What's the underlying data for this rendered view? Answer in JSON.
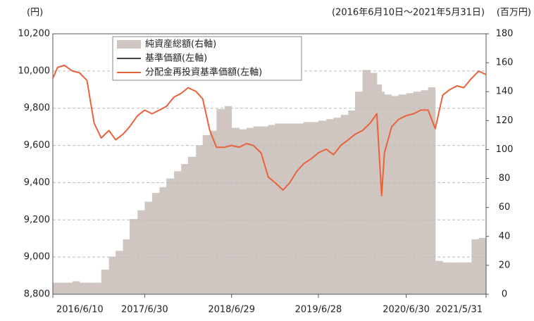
{
  "chart_data": {
    "type": "bar-line",
    "y_label": "(円)",
    "subtitle": "(2016年6月10日～2021年5月31日)",
    "y2_label": "(百万円)",
    "x": [
      "2016/6/10",
      "2016/6/30",
      "2016/7/29",
      "2016/8/31",
      "2016/9/30",
      "2016/10/31",
      "2016/11/30",
      "2016/12/30",
      "2017/1/31",
      "2017/2/28",
      "2017/3/31",
      "2017/4/28",
      "2017/5/31",
      "2017/6/30",
      "2017/7/31",
      "2017/8/31",
      "2017/9/29",
      "2017/10/31",
      "2017/11/30",
      "2017/12/29",
      "2018/1/31",
      "2018/2/28",
      "2018/3/30",
      "2018/4/27",
      "2018/5/31",
      "2018/6/29",
      "2018/7/31",
      "2018/8/31",
      "2018/9/28",
      "2018/10/31",
      "2018/11/30",
      "2018/12/28",
      "2019/1/31",
      "2019/2/28",
      "2019/3/29",
      "2019/4/26",
      "2019/5/31",
      "2019/6/28",
      "2019/7/31",
      "2019/8/30",
      "2019/9/30",
      "2019/10/31",
      "2019/11/29",
      "2019/12/30",
      "2020/1/31",
      "2020/2/28",
      "2020/3/19",
      "2020/3/31",
      "2020/4/30",
      "2020/5/29",
      "2020/6/30",
      "2020/7/31",
      "2020/8/31",
      "2020/9/30",
      "2020/10/30",
      "2020/11/30",
      "2020/12/30",
      "2021/1/29",
      "2021/2/26",
      "2021/3/31",
      "2021/4/30",
      "2021/5/31"
    ],
    "series": [
      {
        "name": "純資産総額(右軸)",
        "type": "bar",
        "axis": "y2",
        "color": "#cfc6c2",
        "values": [
          8,
          8,
          8,
          9,
          8,
          8,
          8,
          17,
          26,
          30,
          38,
          52,
          58,
          64,
          70,
          74,
          80,
          85,
          90,
          95,
          103,
          110,
          113,
          128,
          130,
          115,
          114,
          115,
          116,
          116,
          117,
          118,
          118,
          118,
          118,
          119,
          119,
          120,
          121,
          122,
          124,
          127,
          140,
          155,
          153,
          145,
          140,
          138,
          137,
          138,
          139,
          140,
          141,
          143,
          23,
          22,
          22,
          22,
          22,
          38,
          39,
          39
        ]
      },
      {
        "name": "基準価額(左軸)",
        "type": "line",
        "color": "#444444"
      },
      {
        "name": "分配金再投資基準価額(左軸)",
        "type": "line",
        "color": "#e8623a",
        "values": [
          9960,
          10020,
          10030,
          10000,
          9990,
          9950,
          9720,
          9640,
          9680,
          9630,
          9660,
          9700,
          9760,
          9790,
          9770,
          9790,
          9810,
          9860,
          9880,
          9910,
          9890,
          9850,
          9680,
          9590,
          9590,
          9600,
          9590,
          9610,
          9600,
          9560,
          9430,
          9400,
          9360,
          9400,
          9460,
          9500,
          9530,
          9560,
          9580,
          9550,
          9600,
          9630,
          9660,
          9680,
          9720,
          9770,
          9330,
          9560,
          9700,
          9740,
          9760,
          9770,
          9790,
          9790,
          9690,
          9870,
          9900,
          9920,
          9910,
          9960,
          10000,
          9980
        ]
      }
    ],
    "xlim": [
      "2016/6/10",
      "2021/5/31"
    ],
    "xticks": [
      "2016/6/10",
      "2017/6/30",
      "2018/6/29",
      "2019/6/28",
      "2020/6/30",
      "2021/5/31"
    ],
    "ylim": [
      8800,
      10200
    ],
    "yticks": [
      {
        "value": 8800,
        "label": "8,800"
      },
      {
        "value": 9000,
        "label": "9,000"
      },
      {
        "value": 9200,
        "label": "9,200"
      },
      {
        "value": 9400,
        "label": "9,400"
      },
      {
        "value": 9600,
        "label": "9,600"
      },
      {
        "value": 9800,
        "label": "9,800"
      },
      {
        "value": 10000,
        "label": "10,000"
      },
      {
        "value": 10200,
        "label": "10,200"
      }
    ],
    "y2lim": [
      0,
      180
    ],
    "y2ticks": [
      0,
      20,
      40,
      60,
      80,
      100,
      120,
      140,
      160,
      180
    ],
    "grid": true,
    "legend": "top-left"
  }
}
